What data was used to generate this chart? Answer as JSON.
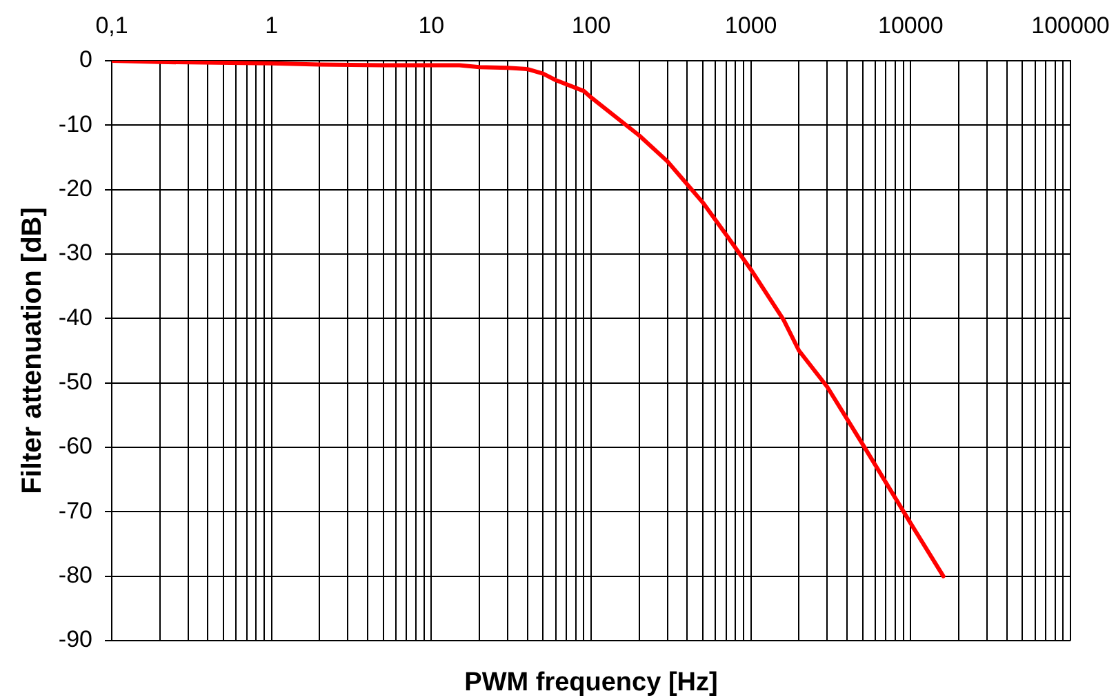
{
  "chart_data": {
    "type": "line",
    "xlabel": "PWM frequency [Hz]",
    "ylabel": "Filter attenuation [dB]",
    "x": [
      0.1,
      0.2,
      1,
      2,
      5,
      15,
      20,
      30,
      40,
      50,
      60,
      90,
      100,
      200,
      300,
      500,
      700,
      1000,
      1600,
      2000,
      3000,
      5000,
      10000,
      16000
    ],
    "series": [
      {
        "color": "#ff0000",
        "values": [
          0,
          -0.2,
          -0.4,
          -0.6,
          -0.7,
          -0.7,
          -1,
          -1.1,
          -1.3,
          -2,
          -3,
          -4.7,
          -5.7,
          -11.6,
          -15.6,
          -22,
          -27,
          -32.4,
          -40.2,
          -45,
          -50.6,
          -59.5,
          -71.8,
          -80
        ]
      }
    ],
    "xlim": [
      0.1,
      100000
    ],
    "ylim": [
      -90,
      0
    ],
    "xticks": [
      {
        "value": 0.1,
        "label": "0,1"
      },
      {
        "value": 0.2,
        "label": null
      },
      {
        "value": 0.3,
        "label": null
      },
      {
        "value": 0.4,
        "label": null
      },
      {
        "value": 0.5,
        "label": null
      },
      {
        "value": 0.6,
        "label": null
      },
      {
        "value": 0.7,
        "label": null
      },
      {
        "value": 0.8,
        "label": null
      },
      {
        "value": 0.9,
        "label": null
      },
      1,
      {
        "value": 2,
        "label": null
      },
      {
        "value": 3,
        "label": null
      },
      {
        "value": 4,
        "label": null
      },
      {
        "value": 5,
        "label": null
      },
      {
        "value": 6,
        "label": null
      },
      {
        "value": 7,
        "label": null
      },
      {
        "value": 8,
        "label": null
      },
      {
        "value": 9,
        "label": null
      },
      10,
      {
        "value": 20,
        "label": null
      },
      {
        "value": 30,
        "label": null
      },
      {
        "value": 40,
        "label": null
      },
      {
        "value": 50,
        "label": null
      },
      {
        "value": 60,
        "label": null
      },
      {
        "value": 70,
        "label": null
      },
      {
        "value": 80,
        "label": null
      },
      {
        "value": 90,
        "label": null
      },
      100,
      {
        "value": 200,
        "label": null
      },
      {
        "value": 300,
        "label": null
      },
      {
        "value": 400,
        "label": null
      },
      {
        "value": 500,
        "label": null
      },
      {
        "value": 600,
        "label": null
      },
      {
        "value": 700,
        "label": null
      },
      {
        "value": 800,
        "label": null
      },
      {
        "value": 900,
        "label": null
      },
      1000,
      {
        "value": 2000,
        "label": null
      },
      {
        "value": 3000,
        "label": null
      },
      {
        "value": 4000,
        "label": null
      },
      {
        "value": 5000,
        "label": null
      },
      {
        "value": 6000,
        "label": null
      },
      {
        "value": 7000,
        "label": null
      },
      {
        "value": 8000,
        "label": null
      },
      {
        "value": 9000,
        "label": null
      },
      10000,
      {
        "value": 20000,
        "label": null
      },
      {
        "value": 30000,
        "label": null
      },
      {
        "value": 40000,
        "label": null
      },
      {
        "value": 50000,
        "label": null
      },
      {
        "value": 60000,
        "label": null
      },
      {
        "value": 70000,
        "label": null
      },
      {
        "value": 80000,
        "label": null
      },
      {
        "value": 90000,
        "label": null
      },
      100000
    ],
    "yticks": [
      0,
      -10,
      -20,
      -30,
      -40,
      -50,
      -60,
      -70,
      -80,
      -90
    ],
    "log": "x",
    "grid": true
  }
}
